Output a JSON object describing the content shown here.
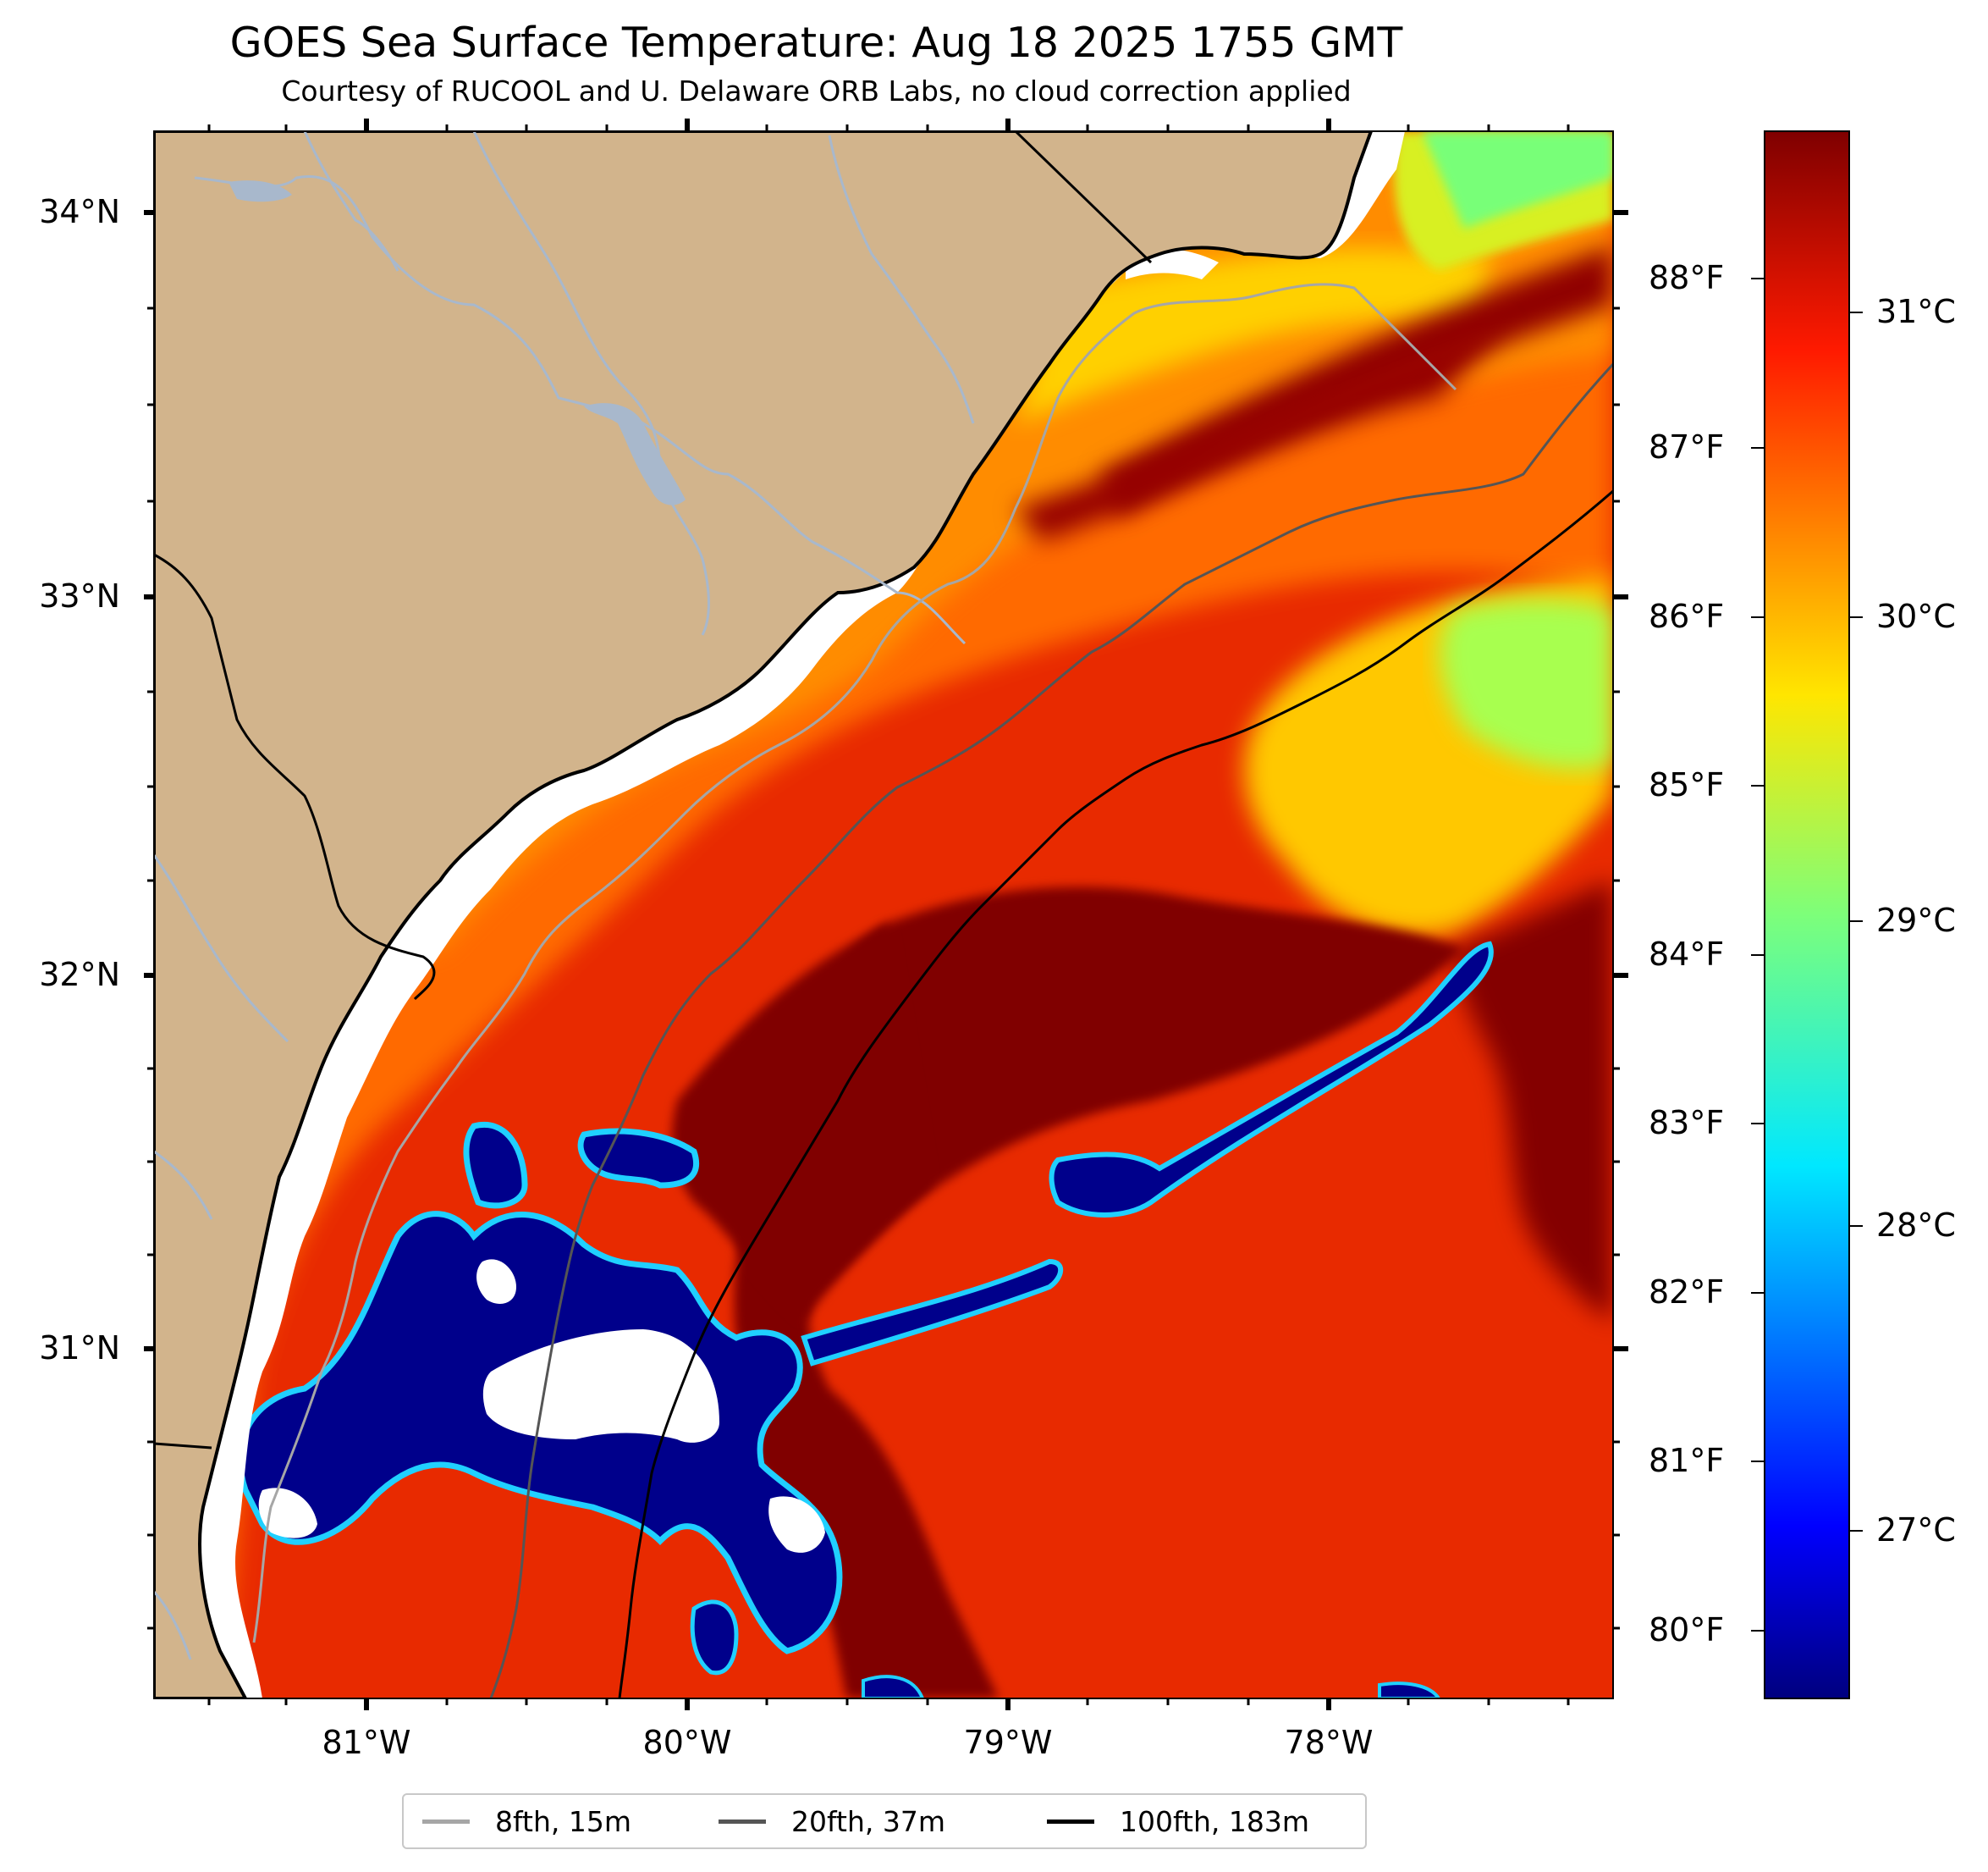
{
  "title": "GOES Sea Surface Temperature: Aug 18 2025 1755 GMT",
  "subtitle": "Courtesy of RUCOOL and U. Delaware ORB Labs, no cloud correction applied",
  "lat_labels": [
    "34°N",
    "33°N",
    "32°N",
    "31°N"
  ],
  "lon_labels": [
    "81°W",
    "80°W",
    "79°W",
    "78°W"
  ],
  "colorbar": {
    "fahrenheit_labels": [
      "88°F",
      "87°F",
      "86°F",
      "85°F",
      "84°F",
      "83°F",
      "82°F",
      "81°F",
      "80°F"
    ],
    "celsius_labels": [
      "31°C",
      "30°C",
      "29°C",
      "28°C",
      "27°C"
    ],
    "colormap": "jet"
  },
  "legend": [
    {
      "label": "8fth, 15m",
      "color": "#a6a6a6"
    },
    {
      "label": "20fth, 37m",
      "color": "#555555"
    },
    {
      "label": "100fth, 183m",
      "color": "#000000"
    }
  ],
  "colors": {
    "land": "#d2b48c",
    "rivers": "#a8b8cc",
    "warm_sst": "#800000",
    "cold_sst": "#00008b",
    "no_data": "#ffffff"
  }
}
